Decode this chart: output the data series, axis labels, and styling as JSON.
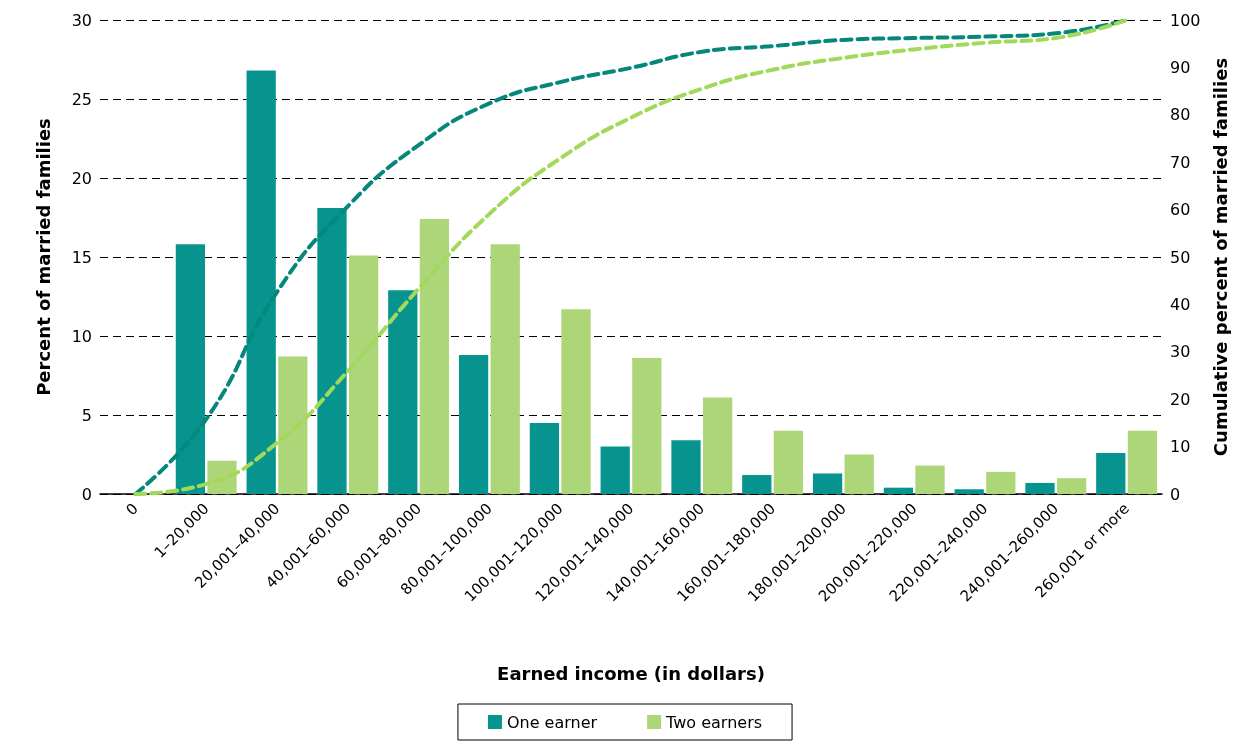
{
  "chart_data": {
    "type": "bar",
    "xlabel": "Earned income (in dollars)",
    "ylabel": "Percent of married families",
    "y2label": "Cumulative percent of married families",
    "categories": [
      "0",
      "1–20,000",
      "20,001–40,000",
      "40,001–60,000",
      "60,001–80,000",
      "80,001–100,000",
      "100,001–120,000",
      "120,001–140,000",
      "140,001–160,000",
      "160,001–180,000",
      "180,001–200,000",
      "200,001–220,000",
      "220,001–240,000",
      "240,001–260,000",
      "260,001 or more"
    ],
    "series": [
      {
        "name": "One earner",
        "color": "#07948f",
        "values": [
          null,
          15.8,
          26.8,
          18.1,
          12.9,
          8.8,
          4.5,
          3.0,
          3.4,
          1.2,
          1.3,
          0.4,
          0.3,
          0.7,
          2.6
        ]
      },
      {
        "name": "Two earners",
        "color": "#acd677",
        "values": [
          null,
          2.1,
          8.7,
          15.1,
          17.4,
          15.8,
          11.7,
          8.6,
          6.1,
          4.0,
          2.5,
          1.8,
          1.4,
          1.0,
          4.0
        ]
      },
      {
        "type": "line",
        "axis": "y2",
        "color": "#05877a",
        "line_style": "dashed",
        "marker": "none",
        "values": [
          0,
          15.8,
          42.6,
          60.7,
          73.6,
          82.4,
          86.9,
          89.9,
          93.3,
          94.5,
          95.8,
          96.2,
          96.5,
          97.2,
          100
        ]
      },
      {
        "type": "line",
        "axis": "y2",
        "color": "#a3d95a",
        "line_style": "dashed",
        "marker": "none",
        "values": [
          0,
          2.1,
          10.8,
          25.9,
          43.3,
          59.1,
          70.8,
          79.4,
          85.5,
          89.5,
          92.0,
          93.8,
          95.2,
          96.2,
          100
        ]
      }
    ],
    "ylim": [
      0,
      30
    ],
    "yticks": [
      0,
      5,
      10,
      15,
      20,
      25,
      30
    ],
    "y2lim": [
      0,
      100
    ],
    "y2ticks": [
      0,
      10,
      20,
      30,
      40,
      50,
      60,
      70,
      80,
      90,
      100
    ],
    "grid": "y",
    "legend": "bottom"
  }
}
